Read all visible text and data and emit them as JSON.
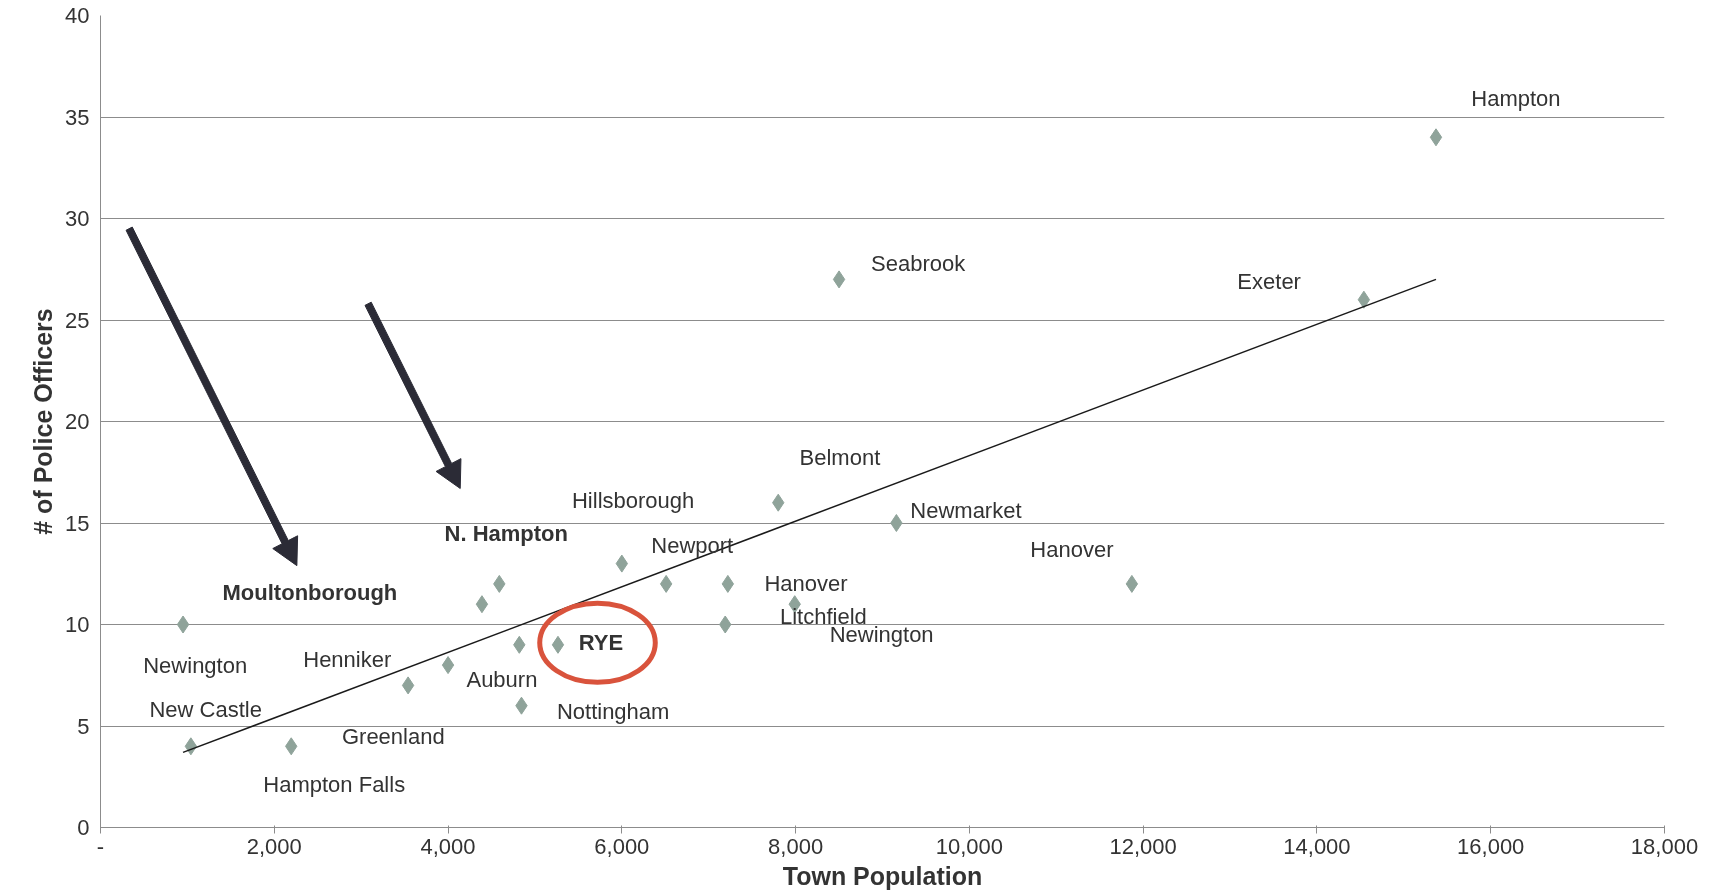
{
  "chart_data": {
    "type": "scatter",
    "xlabel": "Town Population",
    "ylabel": "# of Police Officers",
    "x": [
      950,
      1040,
      2195,
      3540,
      4000,
      4390,
      4590,
      4820,
      5265,
      4845,
      6000,
      6510,
      7220,
      7190,
      7800,
      7990,
      8500,
      9160,
      11870,
      14540,
      15370
    ],
    "series": [
      {
        "type": "scatter",
        "color": "#8fa39a",
        "marker": "diamond",
        "values": [
          10,
          4,
          4,
          7,
          8,
          11,
          12,
          9,
          9,
          6,
          13,
          12,
          12,
          10,
          16,
          11,
          27,
          15,
          12,
          26,
          34
        ]
      },
      {
        "type": "line",
        "color": "#1a1a1a",
        "x": [
          950,
          15370
        ],
        "values": [
          3.7,
          27.0
        ]
      }
    ],
    "xlim": [
      0,
      18000
    ],
    "ylim": [
      0,
      40
    ],
    "xticks": [
      {
        "value": 0,
        "label": "-"
      },
      {
        "value": 2000,
        "label": "2,000"
      },
      {
        "value": 4000,
        "label": "4,000"
      },
      {
        "value": 6000,
        "label": "6,000"
      },
      {
        "value": 8000,
        "label": "8,000"
      },
      {
        "value": 10000,
        "label": "10,000"
      },
      {
        "value": 12000,
        "label": "12,000"
      },
      {
        "value": 14000,
        "label": "14,000"
      },
      {
        "value": 16000,
        "label": "16,000"
      },
      {
        "value": 18000,
        "label": "18,000"
      }
    ],
    "yticks": [
      0,
      5,
      10,
      15,
      20,
      25,
      30,
      35,
      40
    ],
    "grid": "y",
    "annotations": [
      "Hampton",
      "Seabrook",
      "Exeter",
      "Belmont",
      "Hillsborough",
      "Newmarket",
      "Hanover",
      "N. Hampton",
      "Newport",
      "Hanover",
      "Moultonborough",
      "Litchfield",
      "RYE",
      "Newington",
      "Newington",
      "Henniker",
      "Auburn",
      "New Castle",
      "Greenland",
      "Nottingham",
      "Hampton Falls"
    ]
  }
}
